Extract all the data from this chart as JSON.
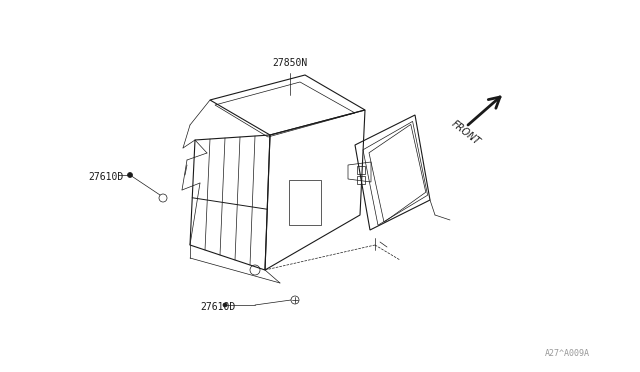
{
  "bg_color": "#ffffff",
  "line_color": "#1a1a1a",
  "label_color": "#1a1a1a",
  "watermark_color": "#999999",
  "watermark": "A27^A009A",
  "label_27850N": "27850N",
  "label_27610D_left": "27610D",
  "label_27610D_bottom": "27610D",
  "label_front": "FRONT",
  "lw": 0.8,
  "thin_lw": 0.5,
  "med_lw": 0.7
}
